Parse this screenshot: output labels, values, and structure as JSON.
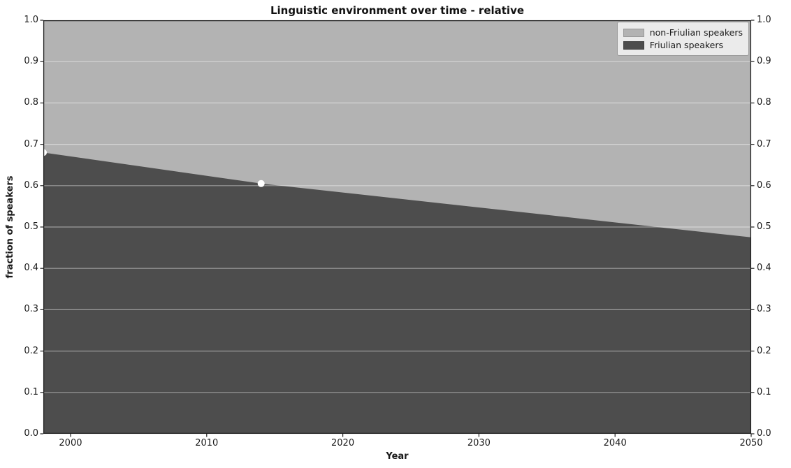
{
  "chart_data": {
    "type": "area",
    "stacked": true,
    "title": "Linguistic environment over time - relative",
    "xlabel": "Year",
    "ylabel": "fraction of speakers",
    "xlim": [
      1998,
      2050
    ],
    "ylim": [
      0.0,
      1.0
    ],
    "xticks": [
      2000,
      2010,
      2020,
      2030,
      2040,
      2050
    ],
    "yticks": [
      0.0,
      0.1,
      0.2,
      0.3,
      0.4,
      0.5,
      0.6,
      0.7,
      0.8,
      0.9,
      1.0
    ],
    "grid": "horizontal-only",
    "legend_position": "upper right",
    "series": [
      {
        "name": "Friulian speakers",
        "color": "#4d4d4d",
        "x": [
          1998,
          2014,
          2050
        ],
        "values": [
          0.68,
          0.605,
          0.475
        ]
      },
      {
        "name": "non-Friulian speakers",
        "color": "#b3b3b3",
        "x": [
          1998,
          2014,
          2050
        ],
        "values": [
          0.32,
          0.395,
          0.525
        ]
      }
    ],
    "data_markers": {
      "color": "#ffffff",
      "points": [
        [
          1998,
          0.68
        ],
        [
          2014,
          0.605
        ]
      ]
    },
    "legend": [
      {
        "label": "non-Friulian speakers",
        "color": "#b3b3b3"
      },
      {
        "label": "Friulian speakers",
        "color": "#4d4d4d"
      }
    ],
    "colors": {
      "grid": "#ffffff",
      "grid_alpha": 0.45,
      "spine": "#1f1f1f",
      "tick_text": "#1a1a1a",
      "background": "#ffffff"
    }
  }
}
